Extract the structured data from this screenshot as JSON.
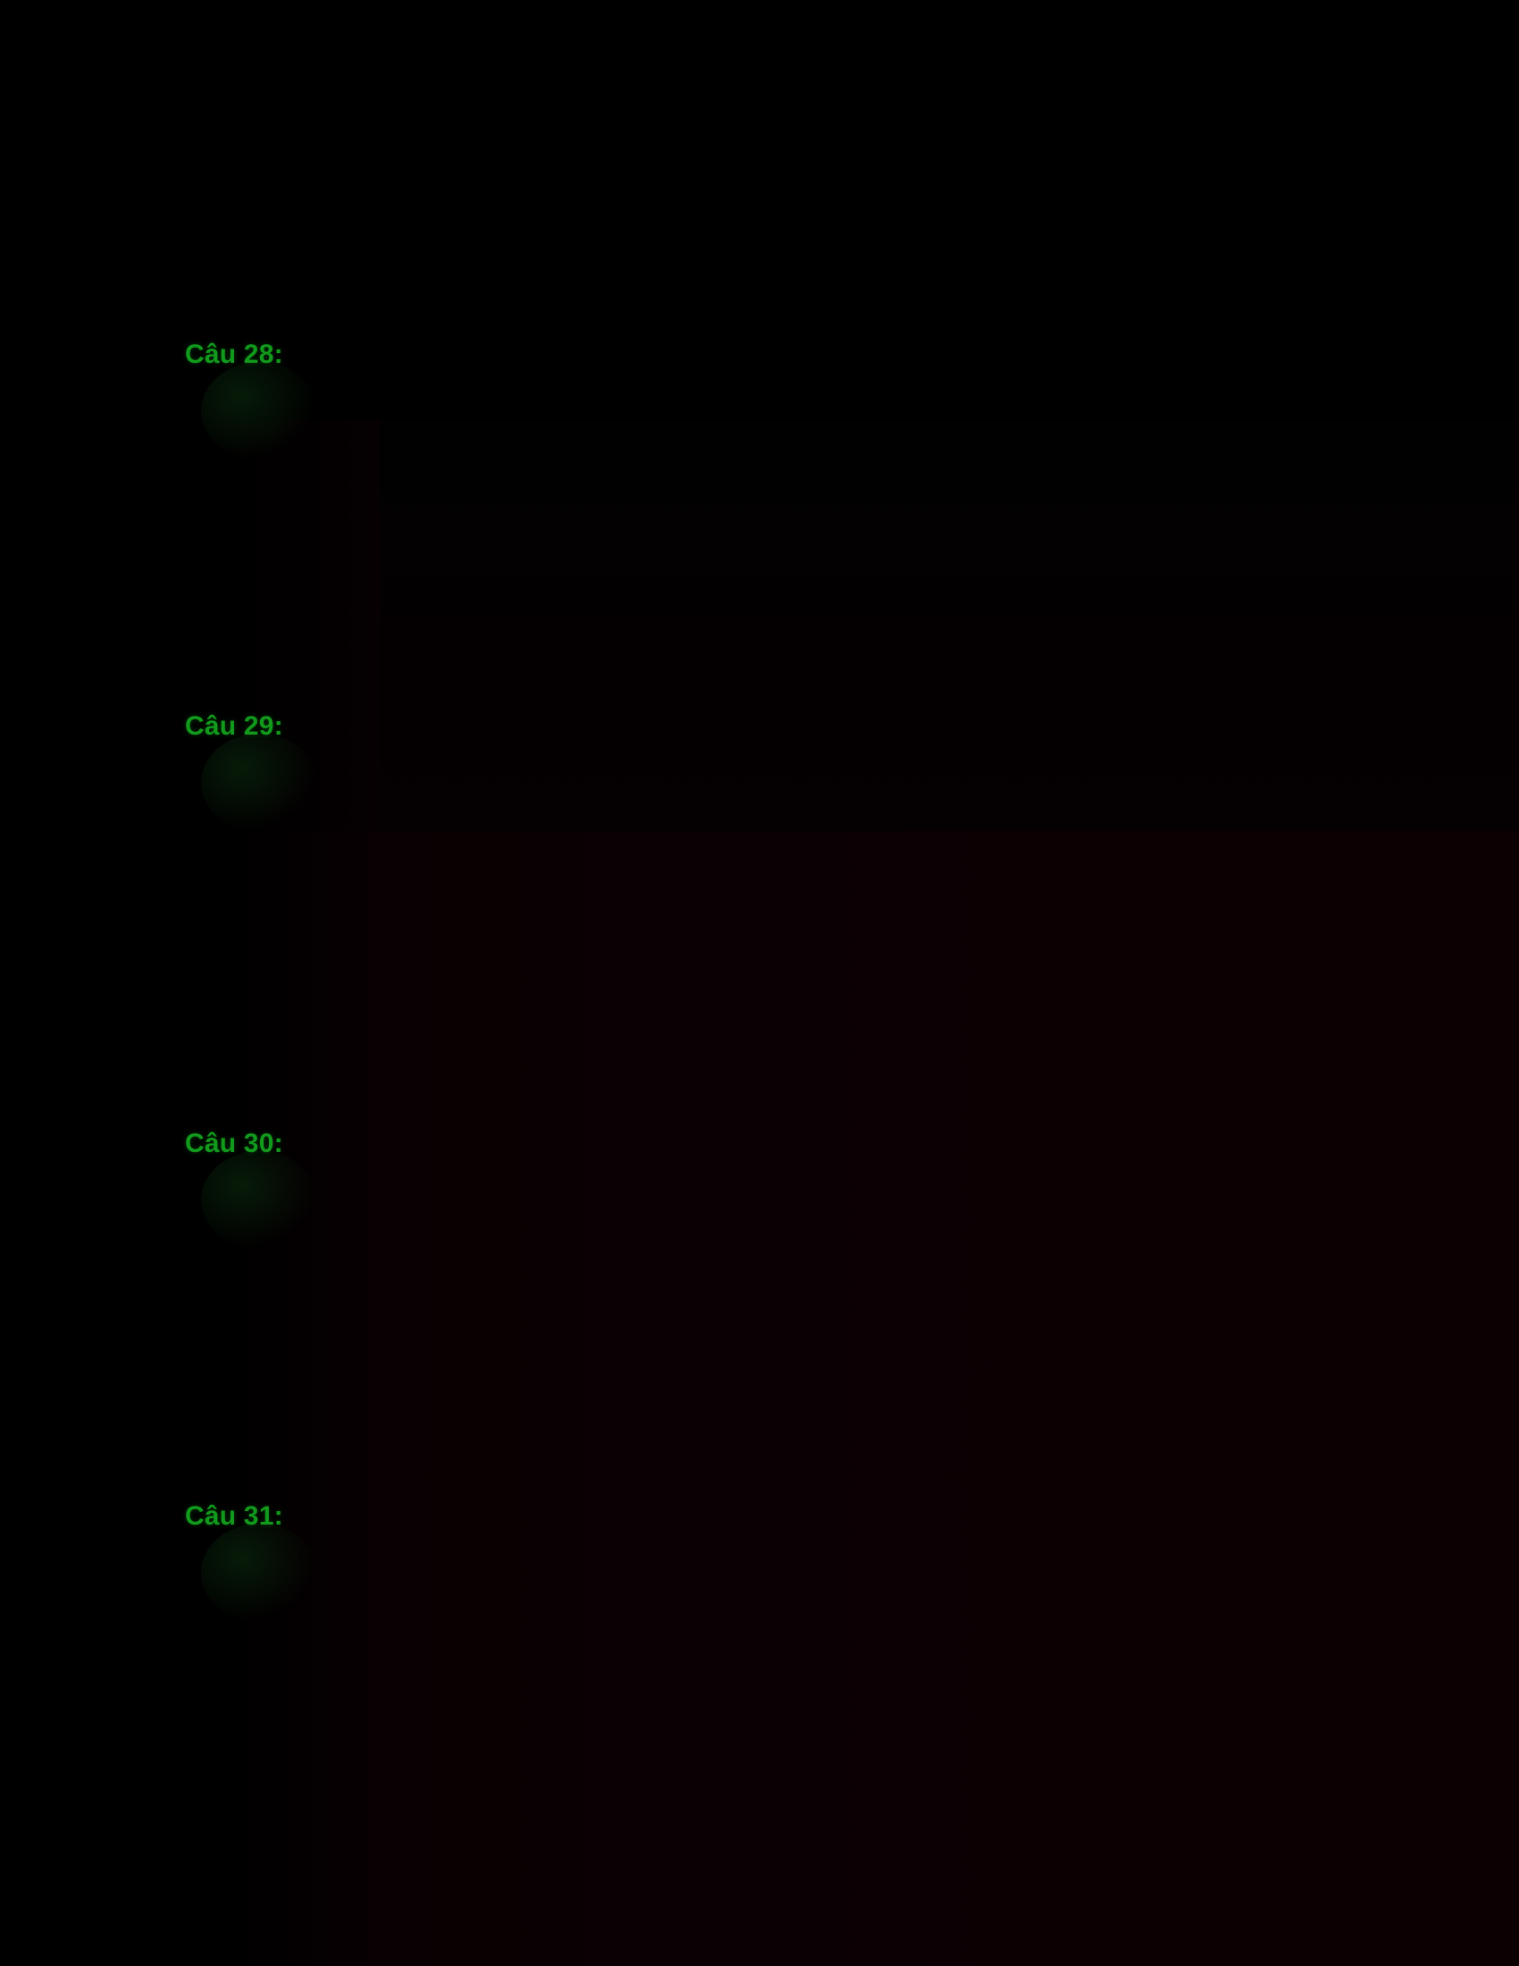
{
  "document": {
    "background_color": "#000000",
    "text_color": "#119a1c",
    "questions": [
      {
        "label": "Câu 28:"
      },
      {
        "label": "Câu 29:"
      },
      {
        "label": "Câu 30:"
      },
      {
        "label": "Câu 31:"
      }
    ]
  }
}
